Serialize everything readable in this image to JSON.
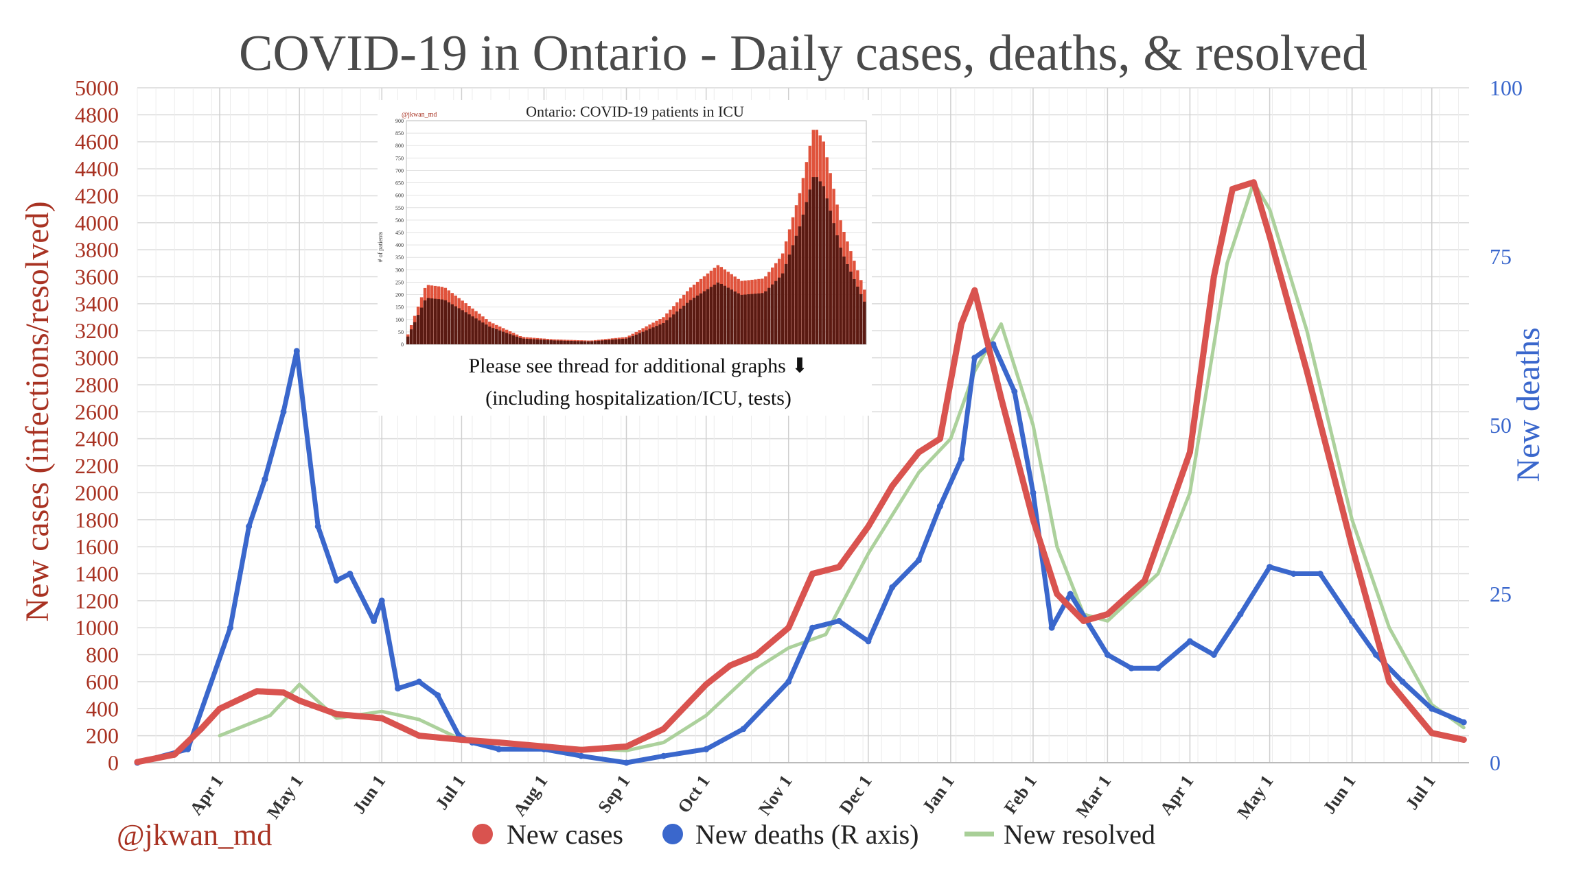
{
  "chart_data": {
    "type": "line",
    "title": "COVID-19 in Ontario - Daily cases, deaths, & resolved",
    "ylabel_left": "New cases (infections/resolved)",
    "ylabel_right": "New deaths",
    "ylim_left": [
      0,
      5000
    ],
    "ylim_right": [
      0,
      100
    ],
    "yticks_left": [
      "0",
      "200",
      "400",
      "600",
      "800",
      "1000",
      "1200",
      "1400",
      "1600",
      "1800",
      "2000",
      "2200",
      "2400",
      "2600",
      "2800",
      "3000",
      "3200",
      "3400",
      "3600",
      "3800",
      "4000",
      "4200",
      "4400",
      "4600",
      "4800",
      "5000"
    ],
    "yticks_right": [
      "0",
      "25",
      "50",
      "75",
      "100"
    ],
    "x_months": [
      "Apr 1",
      "May 1",
      "Jun 1",
      "Jul 1",
      "Aug 1",
      "Sep 1",
      "Oct 1",
      "Nov 1",
      "Dec 1",
      "Jan 1",
      "Feb 1",
      "Mar 1",
      "Apr 1",
      "May 1",
      "Jun 1",
      "Jul 1"
    ],
    "x_dates": [
      "2020-04-01",
      "2020-05-01",
      "2020-06-01",
      "2020-07-01",
      "2020-08-01",
      "2020-09-01",
      "2020-10-01",
      "2020-11-01",
      "2020-12-01",
      "2021-01-01",
      "2021-02-01",
      "2021-03-01",
      "2021-04-01",
      "2021-05-01",
      "2021-06-01",
      "2021-07-01"
    ],
    "x_range": [
      "2020-03-01",
      "2021-07-15"
    ],
    "grid": true,
    "legend_position": "bottom",
    "series": [
      {
        "name": "New cases",
        "axis": "left",
        "color": "#d9534f",
        "x": [
          "2020-03-01",
          "2020-03-15",
          "2020-03-25",
          "2020-04-01",
          "2020-04-15",
          "2020-04-25",
          "2020-05-01",
          "2020-05-15",
          "2020-06-01",
          "2020-06-15",
          "2020-07-01",
          "2020-07-15",
          "2020-08-01",
          "2020-08-15",
          "2020-09-01",
          "2020-09-15",
          "2020-10-01",
          "2020-10-10",
          "2020-10-20",
          "2020-11-01",
          "2020-11-10",
          "2020-11-20",
          "2020-12-01",
          "2020-12-10",
          "2020-12-20",
          "2020-12-28",
          "2021-01-05",
          "2021-01-10",
          "2021-01-20",
          "2021-02-01",
          "2021-02-10",
          "2021-02-20",
          "2021-03-01",
          "2021-03-15",
          "2021-04-01",
          "2021-04-10",
          "2021-04-17",
          "2021-04-25",
          "2021-05-01",
          "2021-05-15",
          "2021-06-01",
          "2021-06-15",
          "2021-07-01",
          "2021-07-13"
        ],
        "values": [
          5,
          60,
          250,
          400,
          530,
          520,
          460,
          360,
          330,
          200,
          170,
          150,
          120,
          95,
          120,
          250,
          580,
          720,
          800,
          1000,
          1400,
          1450,
          1750,
          2050,
          2300,
          2400,
          3250,
          3500,
          2700,
          1800,
          1250,
          1050,
          1100,
          1350,
          2300,
          3600,
          4250,
          4300,
          3900,
          2900,
          1600,
          600,
          220,
          170
        ]
      },
      {
        "name": "New deaths (R axis)",
        "axis": "right",
        "color": "#3a67cc",
        "x": [
          "2020-03-01",
          "2020-03-20",
          "2020-04-05",
          "2020-04-12",
          "2020-04-18",
          "2020-04-25",
          "2020-04-30",
          "2020-05-08",
          "2020-05-15",
          "2020-05-20",
          "2020-05-29",
          "2020-06-01",
          "2020-06-07",
          "2020-06-15",
          "2020-06-22",
          "2020-06-30",
          "2020-07-05",
          "2020-07-15",
          "2020-08-01",
          "2020-08-15",
          "2020-09-01",
          "2020-09-15",
          "2020-10-01",
          "2020-10-15",
          "2020-11-01",
          "2020-11-10",
          "2020-11-20",
          "2020-12-01",
          "2020-12-10",
          "2020-12-20",
          "2020-12-28",
          "2021-01-05",
          "2021-01-10",
          "2021-01-17",
          "2021-01-25",
          "2021-02-01",
          "2021-02-08",
          "2021-02-15",
          "2021-03-01",
          "2021-03-10",
          "2021-03-20",
          "2021-04-01",
          "2021-04-10",
          "2021-04-20",
          "2021-05-01",
          "2021-05-10",
          "2021-05-20",
          "2021-06-01",
          "2021-06-10",
          "2021-06-20",
          "2021-07-01",
          "2021-07-13"
        ],
        "values": [
          0,
          2,
          20,
          35,
          42,
          52,
          61,
          35,
          27,
          28,
          21,
          24,
          11,
          12,
          10,
          4,
          3,
          2,
          2,
          1,
          0,
          1,
          2,
          5,
          12,
          20,
          21,
          18,
          26,
          30,
          38,
          45,
          60,
          62,
          55,
          40,
          20,
          25,
          16,
          14,
          14,
          18,
          16,
          22,
          29,
          28,
          28,
          21,
          16,
          12,
          8,
          6
        ]
      },
      {
        "name": "New resolved",
        "axis": "left",
        "color": "#a8cf97",
        "x": [
          "2020-04-01",
          "2020-04-20",
          "2020-05-01",
          "2020-05-15",
          "2020-06-01",
          "2020-06-15",
          "2020-07-01",
          "2020-08-01",
          "2020-09-01",
          "2020-09-15",
          "2020-10-01",
          "2020-10-20",
          "2020-11-01",
          "2020-11-15",
          "2020-12-01",
          "2020-12-20",
          "2021-01-01",
          "2021-01-10",
          "2021-01-20",
          "2021-02-01",
          "2021-02-10",
          "2021-02-20",
          "2021-03-01",
          "2021-03-20",
          "2021-04-01",
          "2021-04-15",
          "2021-04-25",
          "2021-05-01",
          "2021-05-15",
          "2021-06-01",
          "2021-06-15",
          "2021-07-01",
          "2021-07-13"
        ],
        "values": [
          200,
          350,
          580,
          330,
          380,
          320,
          170,
          120,
          90,
          150,
          350,
          700,
          850,
          950,
          1550,
          2150,
          2400,
          2900,
          3250,
          2500,
          1600,
          1100,
          1050,
          1400,
          2000,
          3700,
          4300,
          4100,
          3200,
          1800,
          1000,
          430,
          260
        ]
      }
    ]
  },
  "watermark": "@jkwan_md",
  "inset": {
    "title": "Ontario: COVID-19 patients in ICU",
    "credit": "@jkwan_md",
    "ylabel": "# of patients",
    "yticks": [
      "0",
      "50",
      "100",
      "150",
      "200",
      "250",
      "300",
      "350",
      "400",
      "450",
      "500",
      "550",
      "600",
      "650",
      "700",
      "750",
      "800",
      "850",
      "900"
    ],
    "note_line1": "Please see thread for additional graphs ⬇",
    "note_line2": "(including hospitalization/ICU, tests)"
  }
}
